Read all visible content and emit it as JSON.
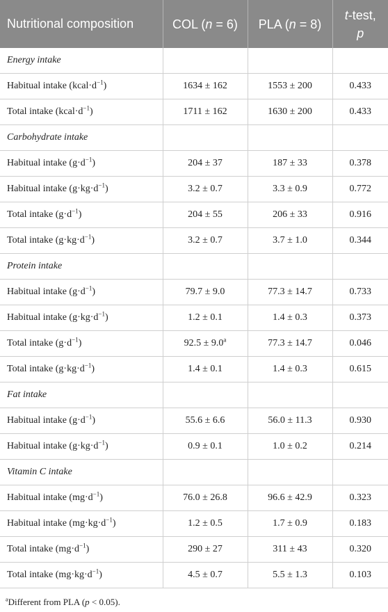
{
  "header": {
    "col1": "Nutritional composition",
    "col2_prefix": "COL (",
    "col2_n": "n",
    "col2_suffix": " = 6)",
    "col3_prefix": "PLA (",
    "col3_n": "n",
    "col3_suffix": " = 8)",
    "col4_t": "t",
    "col4_rest": "-test,",
    "col4_p": "p"
  },
  "rows": [
    {
      "type": "section",
      "label": "Energy intake"
    },
    {
      "type": "data",
      "label": "Habitual intake (kcal·d",
      "sup": "−1",
      "close": ")",
      "col": "1634 ± 162",
      "pla": "1553 ± 200",
      "p": "0.433"
    },
    {
      "type": "data",
      "label": "Total intake (kcal·d",
      "sup": "−1",
      "close": ")",
      "col": "1711 ± 162",
      "pla": "1630 ± 200",
      "p": "0.433"
    },
    {
      "type": "section",
      "label": "Carbohydrate intake"
    },
    {
      "type": "data",
      "label": "Habitual intake (g·d",
      "sup": "−1",
      "close": ")",
      "col": "204 ± 37",
      "pla": "187 ± 33",
      "p": "0.378"
    },
    {
      "type": "data",
      "label": "Habitual intake (g·kg·d",
      "sup": "−1",
      "close": ")",
      "col": "3.2 ± 0.7",
      "pla": "3.3 ± 0.9",
      "p": "0.772"
    },
    {
      "type": "data",
      "label": "Total intake (g·d",
      "sup": "−1",
      "close": ")",
      "col": "204 ± 55",
      "pla": "206 ± 33",
      "p": "0.916"
    },
    {
      "type": "data",
      "label": "Total intake (g·kg·d",
      "sup": "−1",
      "close": ")",
      "col": "3.2 ± 0.7",
      "pla": "3.7 ± 1.0",
      "p": "0.344"
    },
    {
      "type": "section",
      "label": "Protein intake"
    },
    {
      "type": "data",
      "label": "Habitual intake (g·d",
      "sup": "−1",
      "close": ")",
      "col": "79.7 ± 9.0",
      "pla": "77.3 ± 14.7",
      "p": "0.733"
    },
    {
      "type": "data",
      "label": "Habitual intake (g·kg·d",
      "sup": "−1",
      "close": ")",
      "col": "1.2 ± 0.1",
      "pla": "1.4 ± 0.3",
      "p": "0.373"
    },
    {
      "type": "data",
      "label": "Total intake (g·d",
      "sup": "−1",
      "close": ")",
      "col": "92.5 ± 9.0",
      "col_sup": "a",
      "pla": "77.3 ± 14.7",
      "p": "0.046"
    },
    {
      "type": "data",
      "label": "Total intake (g·kg·d",
      "sup": "−1",
      "close": ")",
      "col": "1.4 ± 0.1",
      "pla": "1.4 ± 0.3",
      "p": "0.615"
    },
    {
      "type": "section",
      "label": "Fat intake"
    },
    {
      "type": "data",
      "label": "Habitual intake (g·d",
      "sup": "−1",
      "close": ")",
      "col": "55.6 ± 6.6",
      "pla": "56.0 ± 11.3",
      "p": "0.930"
    },
    {
      "type": "data",
      "label": "Habitual intake (g·kg·d",
      "sup": "−1",
      "close": ")",
      "col": "0.9 ± 0.1",
      "pla": "1.0 ± 0.2",
      "p": "0.214"
    },
    {
      "type": "section",
      "label": "Vitamin C intake"
    },
    {
      "type": "data",
      "label": "Habitual intake (mg·d",
      "sup": "−1",
      "close": ")",
      "col": "76.0 ± 26.8",
      "pla": "96.6 ± 42.9",
      "p": "0.323"
    },
    {
      "type": "data",
      "label": "Habitual intake (mg·kg·d",
      "sup": "−1",
      "close": ")",
      "col": "1.2 ± 0.5",
      "pla": "1.7 ± 0.9",
      "p": "0.183"
    },
    {
      "type": "data",
      "label": "Total intake (mg·d",
      "sup": "−1",
      "close": ")",
      "col": "290 ± 27",
      "pla": "311 ± 43",
      "p": "0.320"
    },
    {
      "type": "data",
      "label": "Total intake (mg·kg·d",
      "sup": "−1",
      "close": ")",
      "col": "4.5 ± 0.7",
      "pla": "5.5 ± 1.3",
      "p": "0.103"
    }
  ],
  "footnote": {
    "mark": "a",
    "text_before": "Different from PLA (",
    "p_italic": "p",
    "text_after": " < 0.05)."
  }
}
